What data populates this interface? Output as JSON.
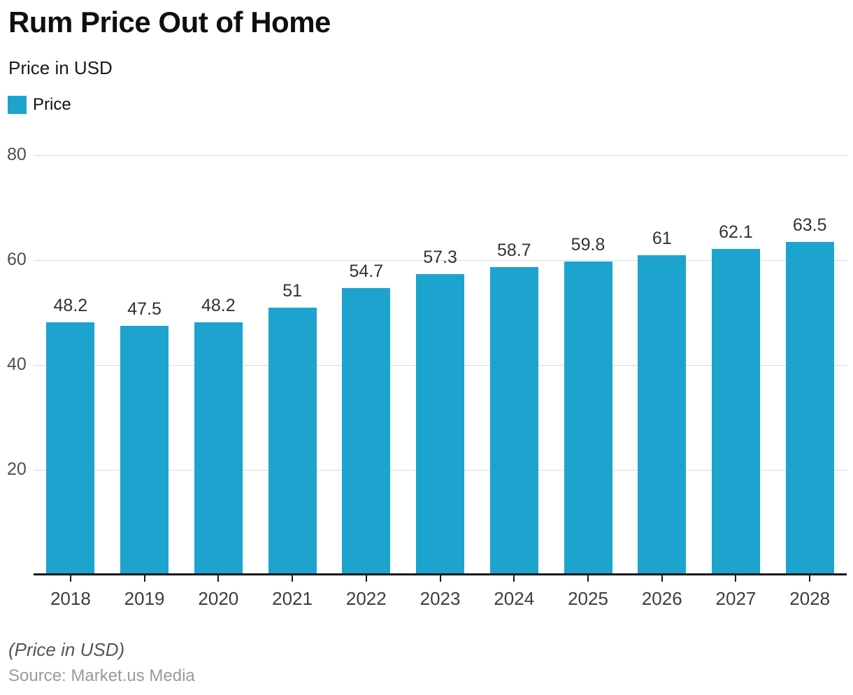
{
  "header": {
    "title": "Rum Price Out of Home",
    "subtitle": "Price in USD"
  },
  "legend": {
    "items": [
      {
        "label": "Price",
        "color": "#1CA3CE"
      }
    ]
  },
  "chart_data": {
    "type": "bar",
    "title": "Rum Price Out of Home",
    "subtitle": "Price in USD",
    "categories": [
      "2018",
      "2019",
      "2020",
      "2021",
      "2022",
      "2023",
      "2024",
      "2025",
      "2026",
      "2027",
      "2028"
    ],
    "series": [
      {
        "name": "Price",
        "color": "#1CA3CE",
        "values": [
          48.2,
          47.5,
          48.2,
          51,
          54.7,
          57.3,
          58.7,
          59.8,
          61,
          62.1,
          63.5
        ]
      }
    ],
    "xlabel": "",
    "ylabel": "",
    "ylim": [
      0,
      80
    ],
    "yticks": [
      20,
      40,
      60,
      80
    ],
    "grid": true,
    "legend_position": "top-left",
    "value_labels_shown": true
  },
  "colors": {
    "bar": "#1CA3CE",
    "gridline": "#d9d9d9",
    "axis_line": "#17181a"
  },
  "footer": {
    "note": "(Price in USD)",
    "source": "Source: Market.us Media"
  }
}
